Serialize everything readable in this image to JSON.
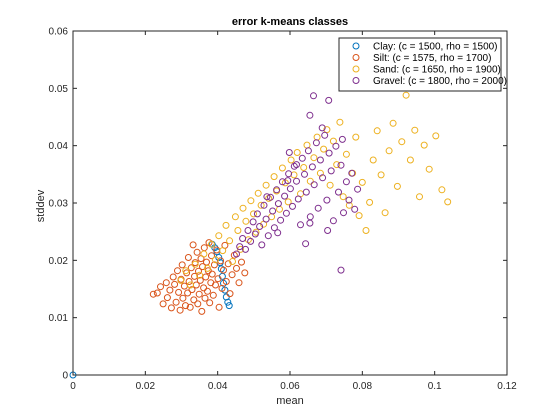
{
  "chart_data": {
    "type": "scatter",
    "title": "error k-means classes",
    "xlabel": "mean",
    "ylabel": "stddev",
    "xlim": [
      0,
      0.12
    ],
    "ylim": [
      0,
      0.06
    ],
    "xticks": [
      "0",
      "0.02",
      "0.04",
      "0.06",
      "0.08",
      "0.1",
      "0.12"
    ],
    "yticks": [
      "0",
      "0.01",
      "0.02",
      "0.03",
      "0.04",
      "0.05",
      "0.06"
    ],
    "grid": false,
    "legend_position": "top-right",
    "marker": "open-circle",
    "series": [
      {
        "name": "Clay: (c = 1500, rho = 1500)",
        "color": "#0072BD",
        "points": [
          [
            0.0,
            0.0
          ],
          [
            0.0385,
            0.0228
          ],
          [
            0.0392,
            0.0222
          ],
          [
            0.0398,
            0.0215
          ],
          [
            0.0403,
            0.0205
          ],
          [
            0.0407,
            0.0196
          ],
          [
            0.041,
            0.0185
          ],
          [
            0.0413,
            0.0172
          ],
          [
            0.0416,
            0.016
          ],
          [
            0.042,
            0.0148
          ],
          [
            0.0424,
            0.0136
          ],
          [
            0.0428,
            0.0127
          ],
          [
            0.0432,
            0.0121
          ]
        ]
      },
      {
        "name": "Silt: (c = 1575, rho = 1700)",
        "color": "#D95319",
        "points": [
          [
            0.0222,
            0.0141
          ],
          [
            0.0233,
            0.0143
          ],
          [
            0.0242,
            0.0154
          ],
          [
            0.0249,
            0.0124
          ],
          [
            0.0258,
            0.0161
          ],
          [
            0.0261,
            0.0135
          ],
          [
            0.0268,
            0.0148
          ],
          [
            0.0272,
            0.0117
          ],
          [
            0.0277,
            0.0171
          ],
          [
            0.0281,
            0.0158
          ],
          [
            0.0285,
            0.0127
          ],
          [
            0.0289,
            0.0182
          ],
          [
            0.0292,
            0.0144
          ],
          [
            0.0296,
            0.0113
          ],
          [
            0.0299,
            0.0167
          ],
          [
            0.0302,
            0.0192
          ],
          [
            0.0304,
            0.0134
          ],
          [
            0.0308,
            0.0155
          ],
          [
            0.0311,
            0.0121
          ],
          [
            0.0314,
            0.0178
          ],
          [
            0.0317,
            0.0143
          ],
          [
            0.0319,
            0.0205
          ],
          [
            0.0321,
            0.0163
          ],
          [
            0.0324,
            0.0118
          ],
          [
            0.0327,
            0.0187
          ],
          [
            0.0329,
            0.0149
          ],
          [
            0.0332,
            0.0227
          ],
          [
            0.0334,
            0.0131
          ],
          [
            0.0336,
            0.0172
          ],
          [
            0.0338,
            0.0196
          ],
          [
            0.0341,
            0.0157
          ],
          [
            0.0343,
            0.0214
          ],
          [
            0.0345,
            0.0124
          ],
          [
            0.0347,
            0.0181
          ],
          [
            0.0349,
            0.0141
          ],
          [
            0.0352,
            0.0165
          ],
          [
            0.0354,
            0.0203
          ],
          [
            0.0356,
            0.0111
          ],
          [
            0.0358,
            0.0189
          ],
          [
            0.0361,
            0.0152
          ],
          [
            0.0363,
            0.0222
          ],
          [
            0.0365,
            0.0134
          ],
          [
            0.0367,
            0.0171
          ],
          [
            0.0369,
            0.0197
          ],
          [
            0.0372,
            0.0146
          ],
          [
            0.0374,
            0.0182
          ],
          [
            0.0376,
            0.0231
          ],
          [
            0.0378,
            0.0126
          ],
          [
            0.0381,
            0.0161
          ],
          [
            0.0383,
            0.0208
          ],
          [
            0.0385,
            0.0176
          ],
          [
            0.0388,
            0.0139
          ],
          [
            0.0391,
            0.0192
          ],
          [
            0.0394,
            0.0157
          ],
          [
            0.0397,
            0.0218
          ],
          [
            0.0401,
            0.0168
          ],
          [
            0.0404,
            0.0118
          ],
          [
            0.0408,
            0.0199
          ],
          [
            0.0412,
            0.0151
          ],
          [
            0.0416,
            0.0183
          ],
          [
            0.042,
            0.0226
          ],
          [
            0.0424,
            0.0163
          ],
          [
            0.0429,
            0.0194
          ],
          [
            0.0434,
            0.0142
          ],
          [
            0.044,
            0.0175
          ],
          [
            0.0446,
            0.0209
          ],
          [
            0.0452,
            0.0186
          ],
          [
            0.0459,
            0.0161
          ],
          [
            0.0466,
            0.0197
          ],
          [
            0.0475,
            0.0178
          ]
        ]
      },
      {
        "name": "Sand: (c = 1650, rho = 1900)",
        "color": "#EDB120",
        "points": [
          [
            0.0298,
            0.0165
          ],
          [
            0.0312,
            0.0182
          ],
          [
            0.0325,
            0.0157
          ],
          [
            0.0338,
            0.0193
          ],
          [
            0.035,
            0.0174
          ],
          [
            0.0362,
            0.0211
          ],
          [
            0.0372,
            0.0186
          ],
          [
            0.0383,
            0.0228
          ],
          [
            0.0394,
            0.0201
          ],
          [
            0.0403,
            0.0243
          ],
          [
            0.0414,
            0.0217
          ],
          [
            0.0423,
            0.0261
          ],
          [
            0.0433,
            0.0234
          ],
          [
            0.0441,
            0.0198
          ],
          [
            0.0449,
            0.0276
          ],
          [
            0.0456,
            0.0252
          ],
          [
            0.0463,
            0.0219
          ],
          [
            0.047,
            0.0291
          ],
          [
            0.0478,
            0.0268
          ],
          [
            0.0485,
            0.0236
          ],
          [
            0.0492,
            0.0304
          ],
          [
            0.0499,
            0.0281
          ],
          [
            0.0506,
            0.0249
          ],
          [
            0.0512,
            0.0317
          ],
          [
            0.052,
            0.0296
          ],
          [
            0.0527,
            0.0263
          ],
          [
            0.0534,
            0.0331
          ],
          [
            0.0541,
            0.0308
          ],
          [
            0.0549,
            0.0276
          ],
          [
            0.0556,
            0.0346
          ],
          [
            0.0563,
            0.0321
          ],
          [
            0.0571,
            0.0289
          ],
          [
            0.0579,
            0.0361
          ],
          [
            0.0587,
            0.0335
          ],
          [
            0.0595,
            0.0302
          ],
          [
            0.0603,
            0.0375
          ],
          [
            0.0611,
            0.0349
          ],
          [
            0.062,
            0.0388
          ],
          [
            0.0629,
            0.0316
          ],
          [
            0.0638,
            0.0362
          ],
          [
            0.0647,
            0.0401
          ],
          [
            0.0656,
            0.0338
          ],
          [
            0.0666,
            0.0379
          ],
          [
            0.0675,
            0.0415
          ],
          [
            0.0684,
            0.0352
          ],
          [
            0.0693,
            0.0394
          ],
          [
            0.0702,
            0.0428
          ],
          [
            0.0711,
            0.0331
          ],
          [
            0.072,
            0.0408
          ],
          [
            0.0729,
            0.0367
          ],
          [
            0.0738,
            0.0441
          ],
          [
            0.0747,
            0.0311
          ],
          [
            0.0756,
            0.0385
          ],
          [
            0.0764,
            0.0296
          ],
          [
            0.0773,
            0.0352
          ],
          [
            0.0782,
            0.0415
          ],
          [
            0.0791,
            0.0278
          ],
          [
            0.08,
            0.0336
          ],
          [
            0.081,
            0.0252
          ],
          [
            0.082,
            0.0301
          ],
          [
            0.083,
            0.0375
          ],
          [
            0.0841,
            0.0426
          ],
          [
            0.0852,
            0.0349
          ],
          [
            0.0863,
            0.0283
          ],
          [
            0.0874,
            0.0391
          ],
          [
            0.0885,
            0.0439
          ],
          [
            0.0897,
            0.0329
          ],
          [
            0.0909,
            0.0407
          ],
          [
            0.0921,
            0.0488
          ],
          [
            0.0933,
            0.0375
          ],
          [
            0.0945,
            0.0427
          ],
          [
            0.0958,
            0.0311
          ],
          [
            0.0971,
            0.0401
          ],
          [
            0.0985,
            0.0359
          ],
          [
            0.1003,
            0.0417
          ],
          [
            0.102,
            0.0323
          ],
          [
            0.1036,
            0.0302
          ]
        ]
      },
      {
        "name": "Gravel: (c = 1800, rho = 2000)",
        "color": "#7E2F8E",
        "points": [
          [
            0.0452,
            0.0211
          ],
          [
            0.0461,
            0.0224
          ],
          [
            0.0469,
            0.0238
          ],
          [
            0.0477,
            0.0219
          ],
          [
            0.0484,
            0.0252
          ],
          [
            0.0491,
            0.0233
          ],
          [
            0.0498,
            0.0267
          ],
          [
            0.0504,
            0.0246
          ],
          [
            0.051,
            0.0281
          ],
          [
            0.0516,
            0.0259
          ],
          [
            0.0522,
            0.0227
          ],
          [
            0.0528,
            0.0296
          ],
          [
            0.0534,
            0.0272
          ],
          [
            0.054,
            0.0243
          ],
          [
            0.0546,
            0.031
          ],
          [
            0.0552,
            0.0286
          ],
          [
            0.0557,
            0.0257
          ],
          [
            0.0563,
            0.0323
          ],
          [
            0.0568,
            0.0299
          ],
          [
            0.0574,
            0.027
          ],
          [
            0.0579,
            0.0337
          ],
          [
            0.0585,
            0.0312
          ],
          [
            0.059,
            0.0282
          ],
          [
            0.0596,
            0.0351
          ],
          [
            0.0601,
            0.0325
          ],
          [
            0.0607,
            0.0294
          ],
          [
            0.0612,
            0.0364
          ],
          [
            0.0618,
            0.0338
          ],
          [
            0.0623,
            0.0307
          ],
          [
            0.0629,
            0.0262
          ],
          [
            0.0634,
            0.0378
          ],
          [
            0.064,
            0.035
          ],
          [
            0.0645,
            0.0319
          ],
          [
            0.0651,
            0.0391
          ],
          [
            0.0656,
            0.0276
          ],
          [
            0.0662,
            0.0363
          ],
          [
            0.0667,
            0.0332
          ],
          [
            0.0673,
            0.0405
          ],
          [
            0.0678,
            0.0291
          ],
          [
            0.0684,
            0.0375
          ],
          [
            0.069,
            0.0344
          ],
          [
            0.0696,
            0.0418
          ],
          [
            0.0702,
            0.0305
          ],
          [
            0.0708,
            0.0387
          ],
          [
            0.0714,
            0.0356
          ],
          [
            0.072,
            0.0269
          ],
          [
            0.0727,
            0.0399
          ],
          [
            0.0734,
            0.0319
          ],
          [
            0.0741,
            0.0366
          ],
          [
            0.0748,
            0.0283
          ],
          [
            0.0756,
            0.0337
          ],
          [
            0.0763,
            0.0305
          ],
          [
            0.0771,
            0.0352
          ],
          [
            0.0779,
            0.0289
          ],
          [
            0.0787,
            0.0324
          ],
          [
            0.0665,
            0.0487
          ],
          [
            0.0707,
            0.0479
          ],
          [
            0.0655,
            0.0453
          ],
          [
            0.0598,
            0.0388
          ],
          [
            0.0566,
            0.0248
          ],
          [
            0.0704,
            0.0252
          ],
          [
            0.0741,
            0.0183
          ],
          [
            0.0643,
            0.0229
          ],
          [
            0.0618,
            0.0367
          ],
          [
            0.0536,
            0.0311
          ],
          [
            0.0689,
            0.0431
          ],
          [
            0.0745,
            0.0411
          ],
          [
            0.0594,
            0.0339
          ],
          [
            0.0655,
            0.0265
          ]
        ]
      }
    ]
  }
}
